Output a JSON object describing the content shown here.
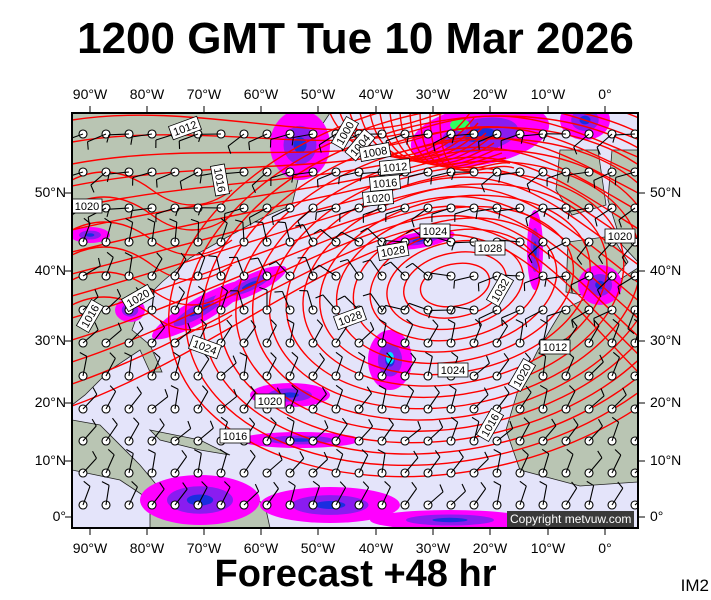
{
  "title": "1200 GMT Tue 10 Mar 2026",
  "footer": "Forecast +48 hr",
  "image_code": "IM2",
  "copyright": "Copyright metvuw.com",
  "longitude_labels": [
    "90°W",
    "80°W",
    "70°W",
    "60°W",
    "50°W",
    "40°W",
    "30°W",
    "20°W",
    "10°W",
    "0°"
  ],
  "latitude_labels": [
    "50°N",
    "40°N",
    "30°N",
    "20°N",
    "10°N",
    "0°"
  ],
  "isobar_labels": [
    "1012",
    "1016",
    "1000",
    "1004",
    "1008",
    "1012",
    "1016",
    "1020",
    "1020",
    "1020",
    "1016",
    "1024",
    "1028",
    "1028",
    "1032",
    "1028",
    "1024",
    "1024",
    "1020",
    "1016",
    "1016",
    "1012",
    "1020",
    "1020"
  ],
  "colors": {
    "ocean": "#e4e4fa",
    "land": "#b9c5b3",
    "isobar": "#ff0000",
    "precip_light": "#ff00ff",
    "precip_mod": "#8a1cf0",
    "precip_heavy": "#1a2ee0",
    "precip_extreme": "#00e0ff"
  }
}
